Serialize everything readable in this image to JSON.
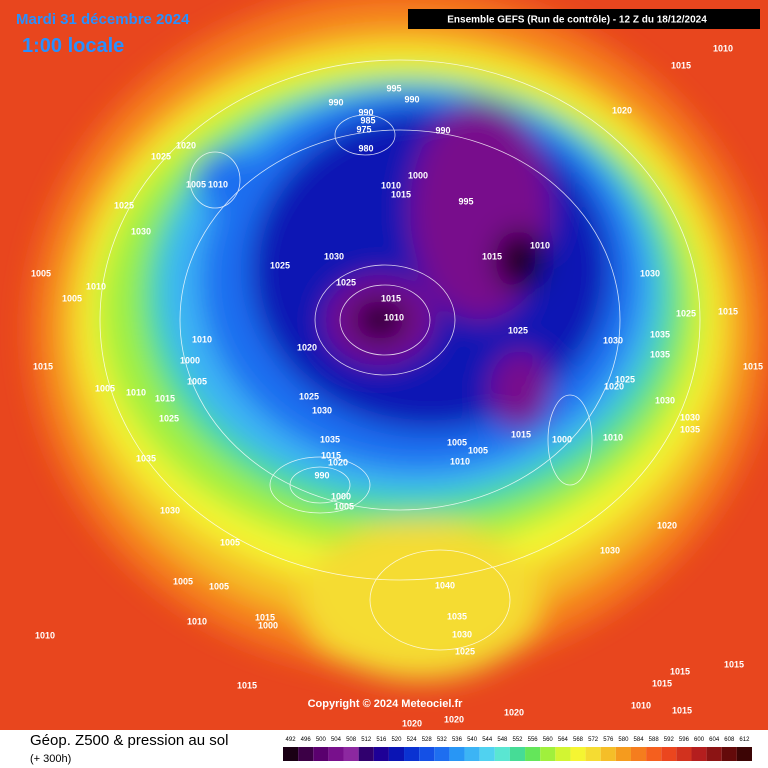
{
  "header": {
    "date": "Mardi 31 décembre 2024",
    "time": "1:00 locale",
    "run": "Ensemble GEFS  (Run de contrôle)  -  12 Z du 18/12/2024"
  },
  "copyright": "Copyright © 2024 Meteociel.fr",
  "footer": {
    "title": "Géop. Z500 & pression au sol",
    "lead": "(+ 300h)"
  },
  "legend": {
    "values": [
      492,
      496,
      500,
      504,
      508,
      512,
      516,
      520,
      524,
      528,
      532,
      536,
      540,
      544,
      548,
      552,
      556,
      560,
      564,
      568,
      572,
      576,
      580,
      584,
      588,
      592,
      596,
      600,
      604,
      608,
      612
    ],
    "colors": [
      "#1a0014",
      "#3c0046",
      "#5a006e",
      "#78108c",
      "#8c28a0",
      "#30006e",
      "#1e0096",
      "#0a14b4",
      "#0a32d2",
      "#1450e6",
      "#1e6ef0",
      "#2896f5",
      "#3cb4f5",
      "#50d2f0",
      "#5ae6d2",
      "#46dc96",
      "#64e65a",
      "#a0f03c",
      "#d2f532",
      "#f5f532",
      "#f5dc32",
      "#f5be28",
      "#f59b1e",
      "#f57d1e",
      "#f55f1e",
      "#eb461e",
      "#d2321e",
      "#b41e1e",
      "#8c1414",
      "#640a0a",
      "#3c0505"
    ]
  },
  "pressure_labels": [
    "990",
    "995",
    "990",
    "990",
    "985",
    "975",
    "980",
    "990",
    "1010",
    "1015",
    "1020",
    "1020",
    "1025",
    "1005",
    "1010",
    "1025",
    "1030",
    "1005",
    "1005",
    "1010",
    "1025",
    "1030",
    "1025",
    "1015",
    "1010",
    "1010",
    "1000",
    "1015",
    "995",
    "1010",
    "1015",
    "1030",
    "1025",
    "1015",
    "1025",
    "1030",
    "1035",
    "1035",
    "1020",
    "1010",
    "1000",
    "1005",
    "1005",
    "1010",
    "1015",
    "1015",
    "1025",
    "1020",
    "1030",
    "1015",
    "1025",
    "1030",
    "1025",
    "1030",
    "1035",
    "1015",
    "1000",
    "1010",
    "1035",
    "1005",
    "1005",
    "1010",
    "1015",
    "1020",
    "1035",
    "990",
    "1000",
    "1005",
    "1030",
    "1020",
    "1030",
    "1005",
    "1005",
    "1005",
    "1040",
    "1035",
    "1030",
    "1025",
    "1015",
    "1000",
    "1010",
    "1010",
    "1015",
    "1015",
    "1015",
    "1015",
    "1010",
    "1015",
    "1020",
    "1020",
    "1020"
  ]
}
